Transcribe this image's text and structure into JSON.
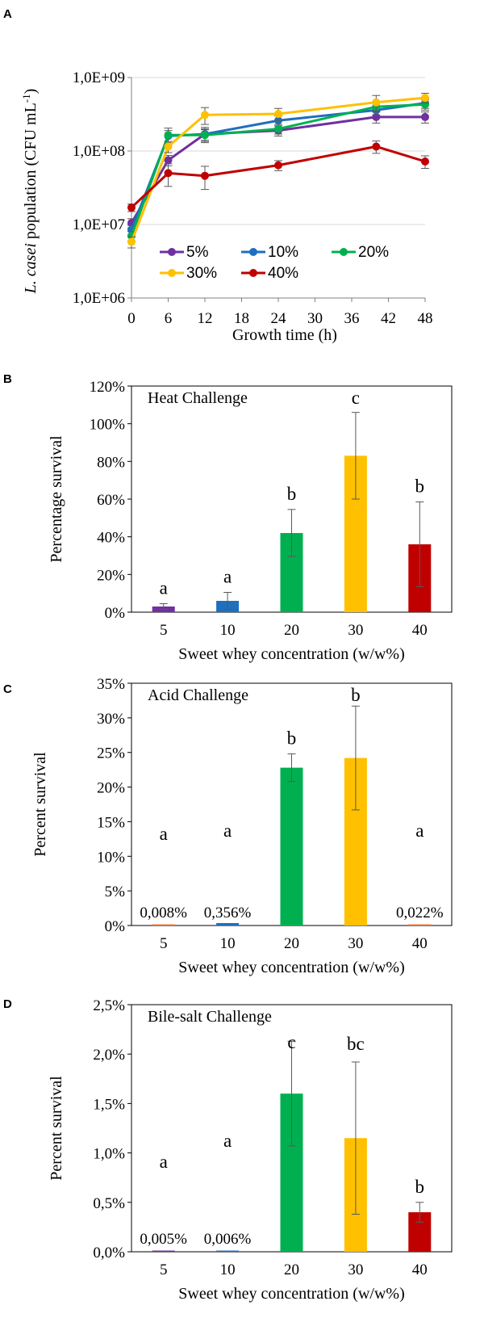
{
  "chart_data": [
    {
      "panel": "A",
      "type": "line",
      "title": "",
      "xlabel": "Growth time (h)",
      "ylabel": "L. casei population (CFU mL-1)",
      "ylabel_italic": "L. casei",
      "ylabel_rest": " population  (CFU mL",
      "ylabel_sup": "-1",
      "ylabel_close": ")",
      "yscale": "log",
      "ylim": [
        1000000,
        1000000000
      ],
      "xlim": [
        0,
        48
      ],
      "x_ticks": [
        "0",
        "6",
        "12",
        "18",
        "24",
        "30",
        "36",
        "42",
        "48"
      ],
      "y_ticks": [
        "1,0E+06",
        "1,0E+07",
        "1,0E+08",
        "1,0E+09"
      ],
      "x": [
        0,
        6,
        12,
        24,
        40,
        48
      ],
      "series": [
        {
          "name": "5%",
          "color": "#7030a0",
          "values": [
            10500000,
            75000000,
            170000000,
            190000000,
            290000000,
            290000000
          ],
          "errors": [
            1500000,
            12000000,
            40000000,
            30000000,
            50000000,
            50000000
          ]
        },
        {
          "name": "10%",
          "color": "#1f6fbf",
          "values": [
            8500000,
            160000000,
            170000000,
            260000000,
            360000000,
            450000000
          ],
          "errors": [
            1200000,
            30000000,
            30000000,
            40000000,
            50000000,
            70000000
          ]
        },
        {
          "name": "20%",
          "color": "#00b050",
          "values": [
            7000000,
            165000000,
            165000000,
            200000000,
            400000000,
            430000000
          ],
          "errors": [
            1000000,
            40000000,
            30000000,
            30000000,
            60000000,
            70000000
          ]
        },
        {
          "name": "30%",
          "color": "#ffc000",
          "values": [
            5800000,
            115000000,
            310000000,
            320000000,
            460000000,
            530000000
          ],
          "errors": [
            1000000,
            20000000,
            80000000,
            60000000,
            110000000,
            80000000
          ]
        },
        {
          "name": "40%",
          "color": "#c00000",
          "values": [
            17000000,
            50000000,
            46000000,
            64000000,
            115000000,
            72000000
          ],
          "errors": [
            2000000,
            17000000,
            16000000,
            10000000,
            22000000,
            14000000
          ]
        }
      ]
    },
    {
      "panel": "B",
      "type": "bar",
      "title": "Heat Challenge",
      "xlabel": "Sweet whey concentration  (w/w%)",
      "ylabel": "Percentage  survival",
      "categories": [
        "5",
        "10",
        "20",
        "30",
        "40"
      ],
      "values": [
        3,
        6,
        42,
        83,
        36
      ],
      "errors": [
        1.5,
        4.5,
        12.5,
        23,
        22.5
      ],
      "letters": [
        "a",
        "a",
        "b",
        "c",
        "b"
      ],
      "colors": [
        "#7030a0",
        "#1f6fbf",
        "#00b050",
        "#ffc000",
        "#c00000"
      ],
      "ylim": [
        0,
        120
      ],
      "y_ticks": [
        "0%",
        "20%",
        "40%",
        "60%",
        "80%",
        "100%",
        "120%"
      ]
    },
    {
      "panel": "C",
      "type": "bar",
      "title": "Acid Challenge",
      "xlabel": "Sweet whey concentration  (w/w%)",
      "ylabel": "Percent survival",
      "categories": [
        "5",
        "10",
        "20",
        "30",
        "40"
      ],
      "values": [
        0.008,
        0.356,
        22.8,
        24.2,
        0.022
      ],
      "errors": [
        0,
        0,
        2,
        7.5,
        0
      ],
      "letters": [
        "a",
        "a",
        "b",
        "b",
        "a"
      ],
      "value_labels": [
        "0,008%",
        "0,356%",
        "",
        "",
        "0,022%"
      ],
      "colors": [
        "#ed7d31",
        "#1f6fbf",
        "#00b050",
        "#ffc000",
        "#ed7d31"
      ],
      "ylim": [
        0,
        35
      ],
      "y_ticks": [
        "0%",
        "5%",
        "10%",
        "15%",
        "20%",
        "25%",
        "30%",
        "35%"
      ]
    },
    {
      "panel": "D",
      "type": "bar",
      "title": "Bile-salt  Challenge",
      "xlabel": "Sweet whey concentration  (w/w%)",
      "ylabel": "Percent survival",
      "categories": [
        "5",
        "10",
        "20",
        "30",
        "40"
      ],
      "values": [
        0.005,
        0.006,
        1.6,
        1.15,
        0.4
      ],
      "errors": [
        0,
        0,
        0.53,
        0.77,
        0.1
      ],
      "letters": [
        "a",
        "a",
        "c",
        "bc",
        "b"
      ],
      "value_labels": [
        "0,005%",
        "0,006%",
        "",
        "",
        ""
      ],
      "colors": [
        "#7030a0",
        "#1f6fbf",
        "#00b050",
        "#ffc000",
        "#c00000"
      ],
      "ylim": [
        0,
        2.5
      ],
      "y_ticks": [
        "0,0%",
        "0,5%",
        "1,0%",
        "1,5%",
        "2,0%",
        "2,5%"
      ]
    }
  ]
}
